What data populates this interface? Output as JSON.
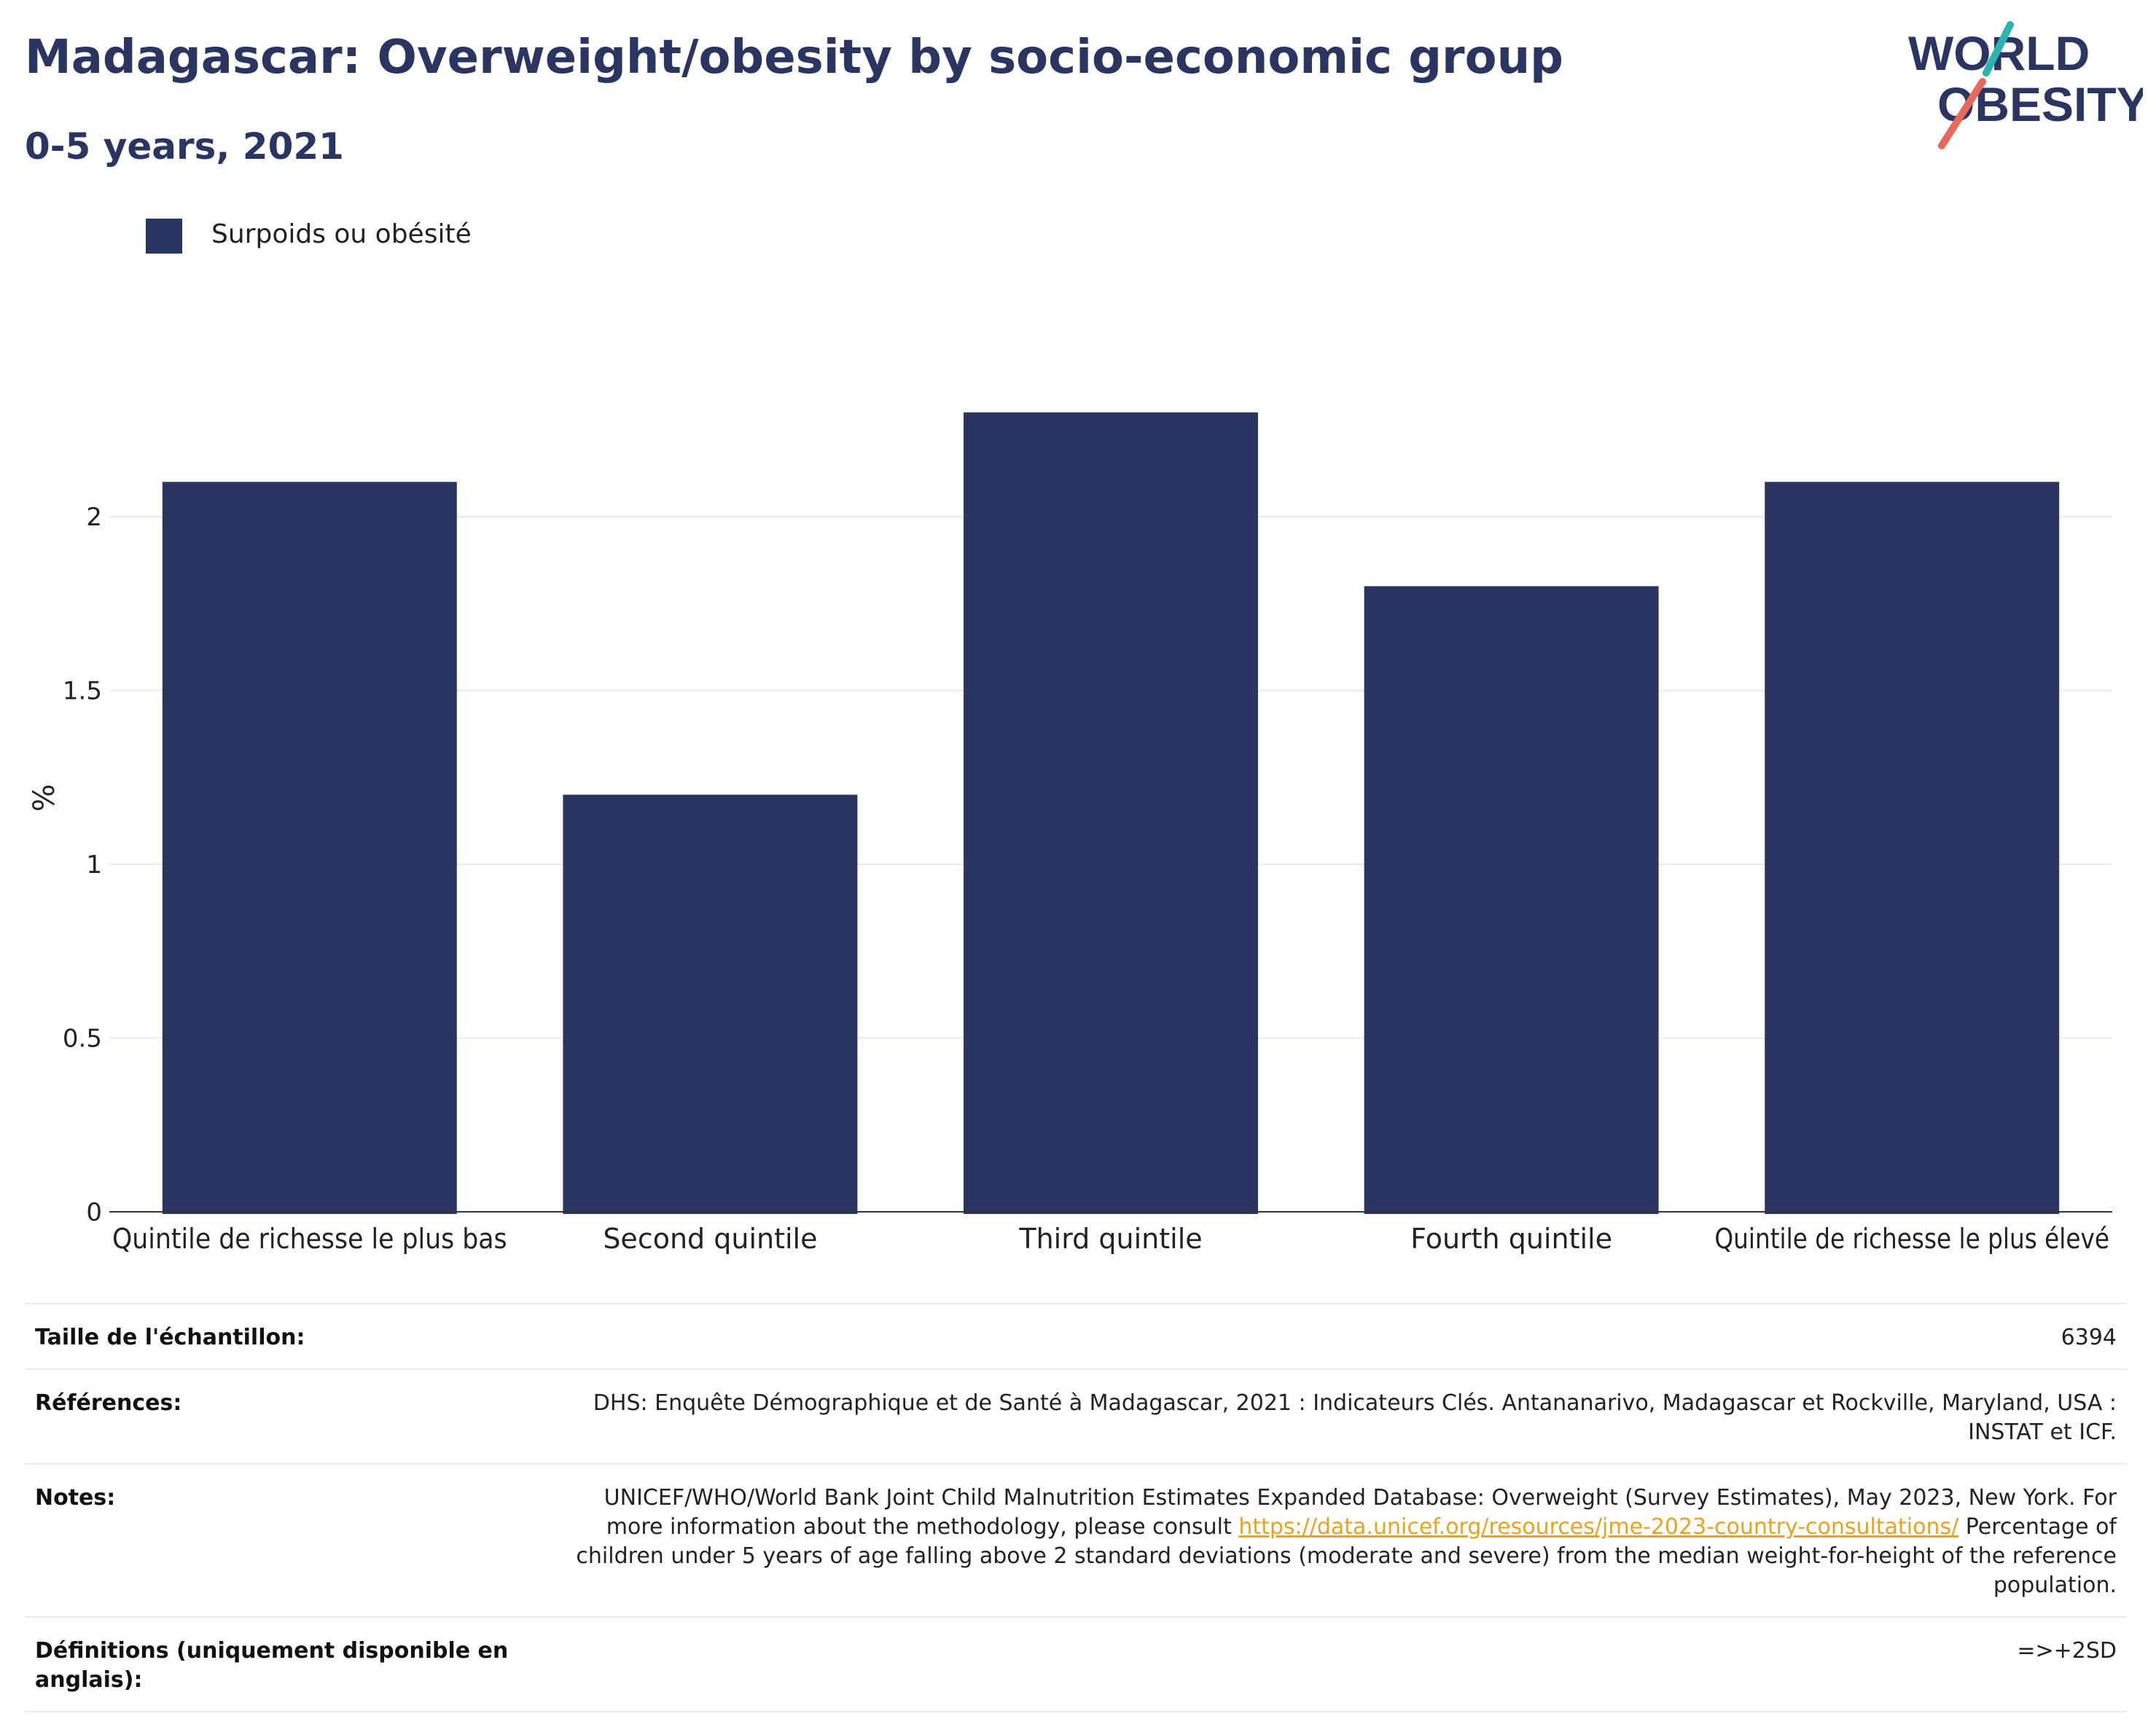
{
  "title": "Madagascar: Overweight/obesity by socio-economic group",
  "subtitle": "0-5 years, 2021",
  "logo": {
    "line1": "WORLD",
    "line2": "OBESITY",
    "accent_teal": "#2bb3b1",
    "accent_red": "#e8695b"
  },
  "colors": {
    "bar": "#2a3661",
    "title": "#2a3661",
    "grid": "#e6e9f0",
    "link": "#e8a320"
  },
  "chart_data": {
    "type": "bar",
    "categories": [
      "Quintile de richesse le plus bas",
      "Second quintile",
      "Third quintile",
      "Fourth quintile",
      "Quintile de richesse le plus élevé"
    ],
    "series": [
      {
        "name": "Surpoids ou obésité",
        "values": [
          2.1,
          1.2,
          2.3,
          1.8,
          2.1
        ]
      }
    ],
    "ylabel": "%",
    "ylim": [
      0,
      2.55
    ],
    "yticks": [
      0,
      0.5,
      1,
      1.5,
      2
    ],
    "ytick_labels": [
      "0",
      "0.5",
      "1",
      "1.5",
      "2"
    ],
    "grid": true,
    "legend_position": "top-left"
  },
  "info": {
    "sample_label": "Taille de l'échantillon:",
    "sample_value": "6394",
    "references_label": "Références:",
    "references_value": "DHS: Enquête Démographique et de Santé à Madagascar, 2021 : Indicateurs Clés. Antananarivo, Madagascar et Rockville, Maryland, USA : INSTAT et ICF.",
    "notes_label": "Notes:",
    "notes_text_1": "UNICEF/WHO/World Bank Joint Child Malnutrition Estimates Expanded Database: Overweight (Survey Estimates), May 2023, New York. For more information about the methodology, please consult",
    "notes_link": "https://data.unicef.org/resources/jme-2023-country-consultations/",
    "notes_text_2": "Percentage of children under 5 years of age falling above 2 standard deviations (moderate and severe) from the median weight-for-height of the reference population.",
    "definitions_label": "Définitions (uniquement disponible en anglais):",
    "definitions_value": "=>+2SD"
  }
}
